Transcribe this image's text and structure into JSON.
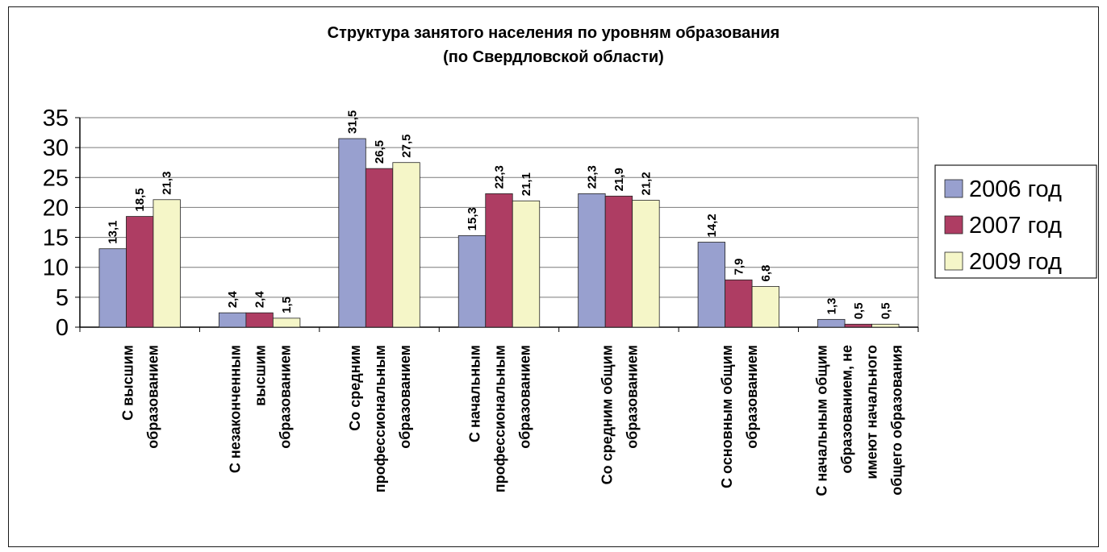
{
  "chart_data": {
    "type": "bar",
    "title": "Структура занятого населения по уровням образования",
    "subtitle": "(по Свердловской области)",
    "ylim": [
      0,
      35
    ],
    "yticks": [
      "0",
      "5",
      "10",
      "15",
      "20",
      "25",
      "30",
      "35"
    ],
    "grid": true,
    "legend_position": "right",
    "categories": [
      [
        "С высшим",
        "образованием"
      ],
      [
        "С незаконченным",
        "высшим",
        "образованием"
      ],
      [
        "Со средним",
        "профессиональным",
        "образованием"
      ],
      [
        "С начальным",
        "профессиональным",
        "образованием"
      ],
      [
        "Со средним общим",
        "образованием"
      ],
      [
        "С основным общим",
        "образованием"
      ],
      [
        "С начальным общим",
        "образованием, не",
        "имеют начального",
        "общего образования"
      ]
    ],
    "series": [
      {
        "name": "2006 год",
        "color": "#98a0cf",
        "values": [
          13.1,
          2.4,
          31.5,
          15.3,
          22.3,
          14.2,
          1.3
        ],
        "labels": [
          "13,1",
          "2,4",
          "31,5",
          "15,3",
          "22,3",
          "14,2",
          "1,3"
        ]
      },
      {
        "name": "2007 год",
        "color": "#ae3d63",
        "values": [
          18.5,
          2.4,
          26.5,
          22.3,
          21.9,
          7.9,
          0.5
        ],
        "labels": [
          "18,5",
          "2,4",
          "26,5",
          "22,3",
          "21,9",
          "7,9",
          "0,5"
        ]
      },
      {
        "name": "2009 год",
        "color": "#f5f6c8",
        "values": [
          21.3,
          1.5,
          27.5,
          21.1,
          21.2,
          6.8,
          0.5
        ],
        "labels": [
          "21,3",
          "1,5",
          "27,5",
          "21,1",
          "21,2",
          "6,8",
          "0,5"
        ]
      }
    ]
  }
}
